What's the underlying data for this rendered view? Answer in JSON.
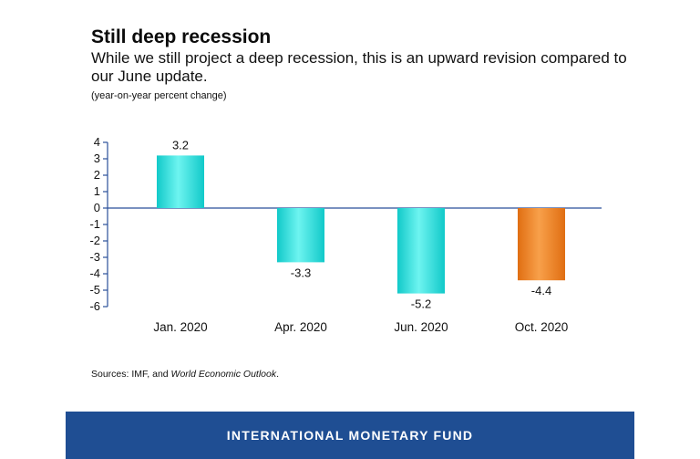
{
  "header": {
    "title": "Still deep recession",
    "subtitle": "While we still project a deep recession, this is an upward revision compared to our June update.",
    "units": "(year-on-year percent change)"
  },
  "source": {
    "prefix": "Sources: IMF, and ",
    "publication": "World Economic Outlook",
    "suffix": "."
  },
  "footer": {
    "org_name": "INTERNATIONAL MONETARY FUND"
  },
  "colors": {
    "bar_past": "#1ed8d8",
    "bar_current": "#f07f1e",
    "axis": "#2a4f9a",
    "footer_bg": "#1f4e93"
  },
  "chart_data": {
    "type": "bar",
    "categories": [
      "Jan. 2020",
      "Apr. 2020",
      "Jun. 2020",
      "Oct. 2020"
    ],
    "values": [
      3.2,
      -3.3,
      -5.2,
      -4.4
    ],
    "data_labels": [
      "3.2",
      "-3.3",
      "-5.2",
      "-4.4"
    ],
    "bar_colors": [
      "#1ed8d8",
      "#1ed8d8",
      "#1ed8d8",
      "#f07f1e"
    ],
    "ylim": [
      -6,
      4
    ],
    "yticks": [
      4,
      3,
      2,
      1,
      0,
      -1,
      -2,
      -3,
      -4,
      -5,
      -6
    ],
    "grid": false,
    "legend": "none",
    "xlabel": "",
    "ylabel": ""
  }
}
